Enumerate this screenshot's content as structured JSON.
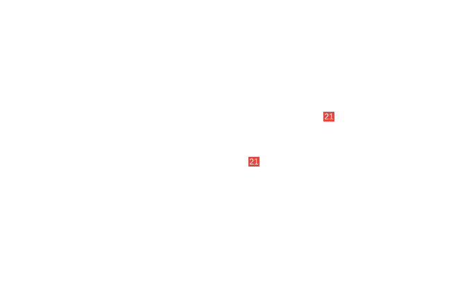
{
  "badges": [
    {
      "label": "21",
      "color": "#e8453c"
    },
    {
      "label": "21",
      "color": "#e8453c"
    }
  ]
}
